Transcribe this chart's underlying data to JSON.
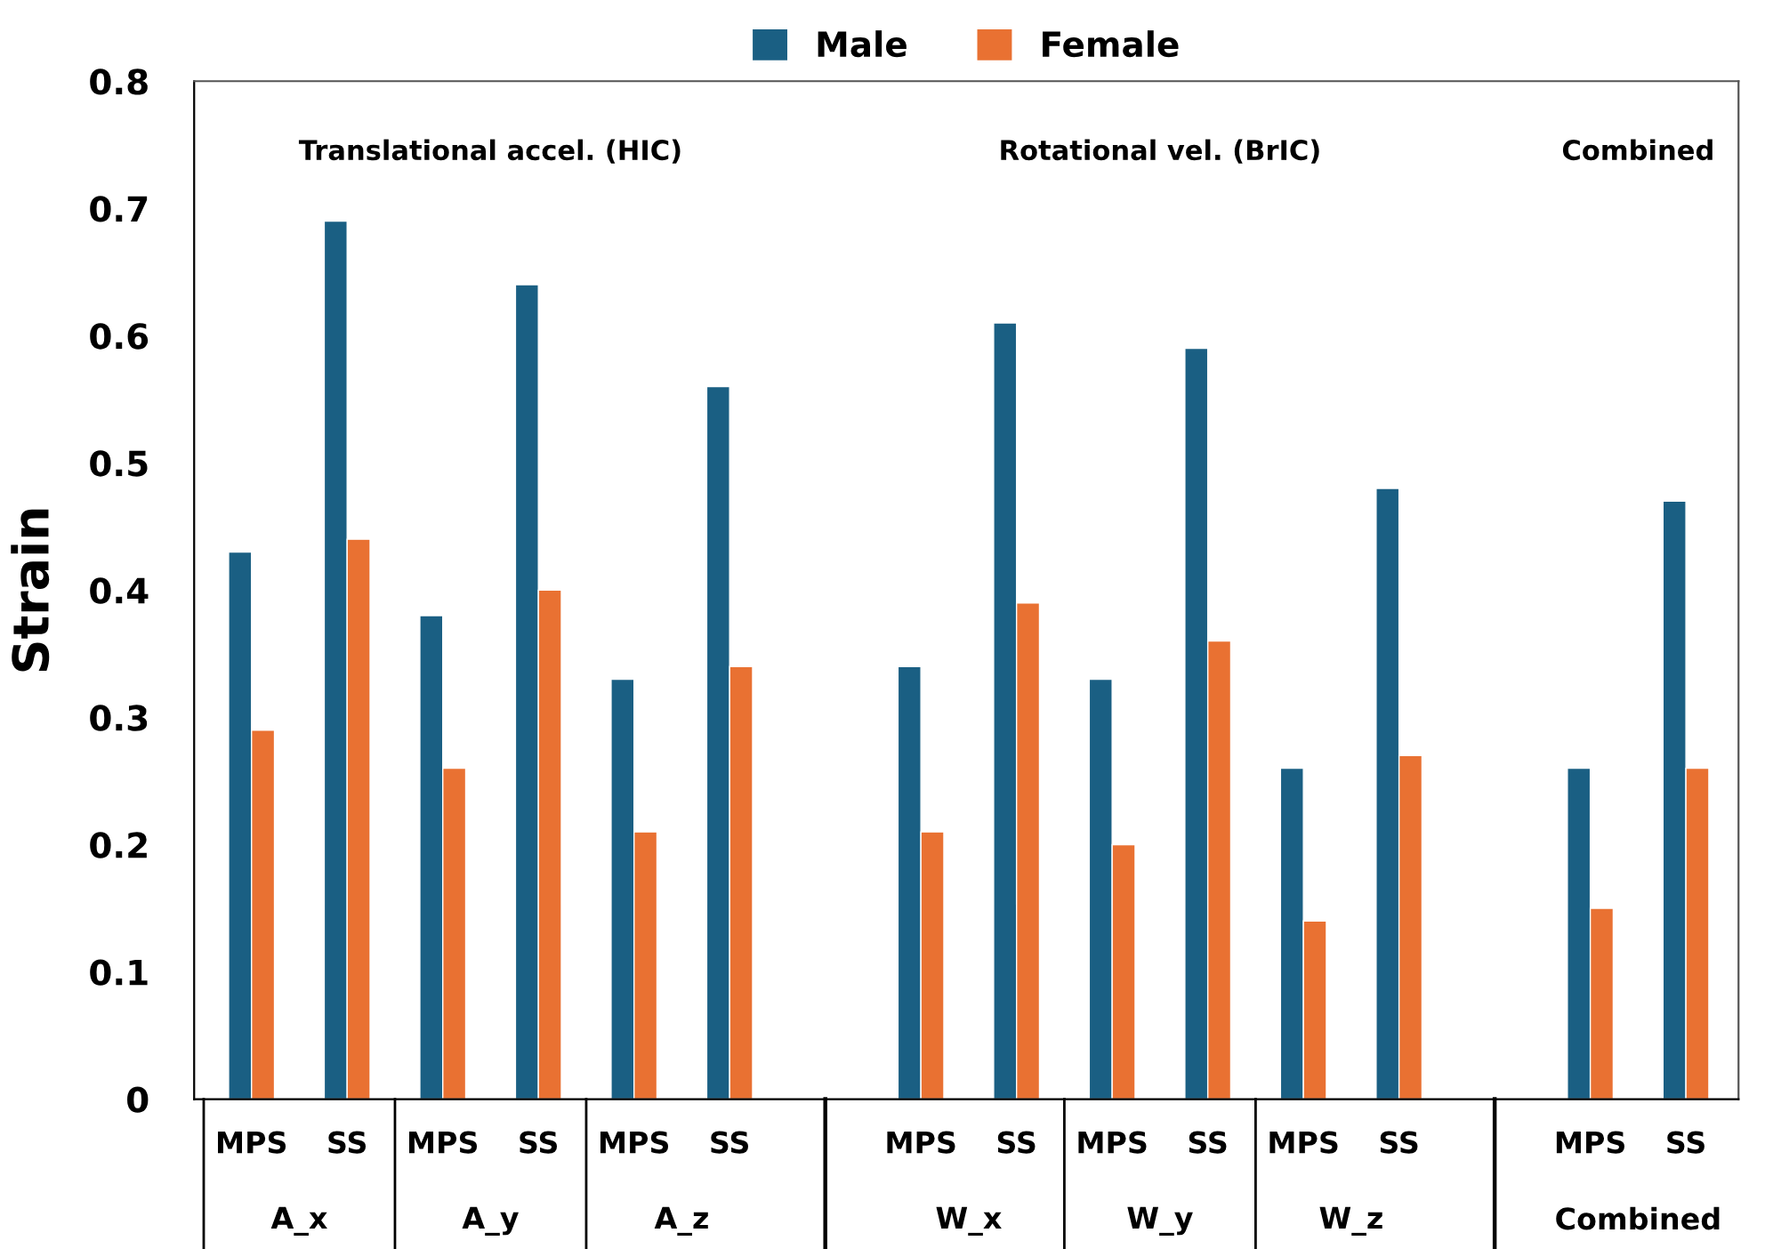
{
  "chart_data": {
    "type": "bar",
    "ylabel": "Strain",
    "categories": [
      "MPS",
      "SS",
      "MPS",
      "SS",
      "MPS",
      "SS",
      null,
      "MPS",
      "SS",
      "MPS",
      "SS",
      "MPS",
      "SS",
      null,
      "MPS",
      "SS"
    ],
    "series": [
      {
        "name": "Male",
        "color": "#1a5f83",
        "values": [
          0.43,
          0.69,
          0.38,
          0.64,
          0.33,
          0.56,
          null,
          0.34,
          0.61,
          0.33,
          0.59,
          0.26,
          0.48,
          null,
          0.26,
          0.47
        ]
      },
      {
        "name": "Female",
        "color": "#e97132",
        "values": [
          0.29,
          0.44,
          0.26,
          0.4,
          0.21,
          0.34,
          null,
          0.21,
          0.39,
          0.2,
          0.36,
          0.14,
          0.27,
          null,
          0.15,
          0.26
        ]
      }
    ],
    "annotations": [
      "Translational accel. (HIC)",
      "Rotational vel. (BrIC)",
      "Combined",
      "A_x",
      "A_y",
      "A_z",
      "W_x",
      "W_y",
      "W_z",
      "Combined"
    ],
    "ylim": [
      0,
      0.8
    ],
    "yticks": [
      0,
      0.1,
      0.2,
      0.3,
      0.4,
      0.5,
      0.6,
      0.7,
      0.8
    ],
    "grid": false,
    "legend": "top"
  }
}
